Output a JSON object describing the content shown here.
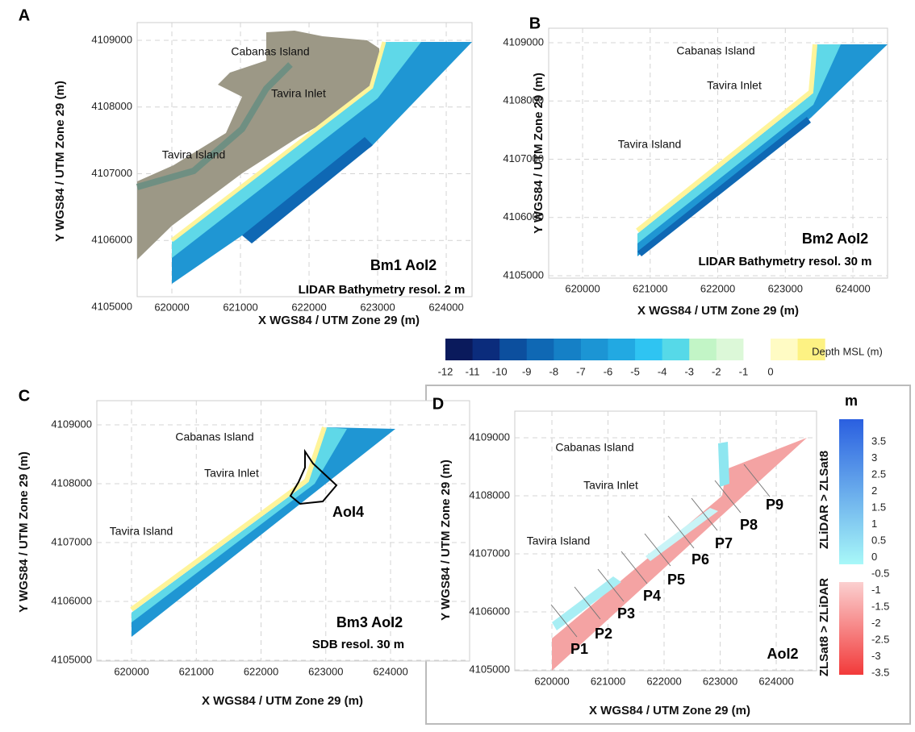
{
  "panels": [
    {
      "letter": "A",
      "title": "Bm1 AoI2",
      "subtitle": "LIDAR Bathymetry resol. 2 m",
      "xlabel": "X WGS84 / UTM Zone 29 (m)",
      "ylabel": "Y WGS84 / UTM Zone 29 (m)",
      "xlim": [
        619494,
        624376
      ],
      "ylim": [
        4105157,
        4109266
      ],
      "xticks": [
        620000,
        621000,
        622000,
        623000,
        624000
      ],
      "yticks": [
        4105000,
        4106000,
        4107000,
        4108000,
        4109000
      ],
      "annotations": [
        "Cabanas Island",
        "Tavira Inlet",
        "Tavira Island"
      ]
    },
    {
      "letter": "B",
      "title": "Bm2 AoI2",
      "subtitle": "LIDAR Bathymetry resol. 30 m",
      "xlabel": "X WGS84 / UTM Zone 29 (m)",
      "ylabel": "Y WGS84 / UTM Zone 29 (m)",
      "xlim": [
        619498,
        624513
      ],
      "ylim": [
        4104958,
        4109249
      ],
      "xticks": [
        620000,
        621000,
        622000,
        623000,
        624000
      ],
      "yticks": [
        4105000,
        4106000,
        4107000,
        4108000,
        4109000
      ],
      "annotations": [
        "Cabanas Island",
        "Tavira Inlet",
        "Tavira Island"
      ]
    },
    {
      "letter": "C",
      "title": "Bm3 AoI2",
      "subtitle": "SDB resol. 30 m",
      "xlabel": "X WGS84 / UTM Zone 29 (m)",
      "ylabel": "Y WGS84 / UTM Zone 29 (m)",
      "xlim": [
        619464,
        625221
      ],
      "ylim": [
        4104986,
        4109411
      ],
      "xticks": [
        620000,
        621000,
        622000,
        623000,
        624000
      ],
      "yticks": [
        4105000,
        4106000,
        4107000,
        4108000,
        4109000
      ],
      "annotations": [
        "Cabanas Island",
        "Tavira Inlet",
        "Tavira Island",
        "AoI4"
      ]
    },
    {
      "letter": "D",
      "title": "AoI2",
      "xlabel": "X WGS84 / UTM Zone 29 (m)",
      "ylabel": "Y WGS84 / UTM Zone 29 (m)",
      "xlim": [
        619338,
        624719
      ],
      "ylim": [
        4104986,
        4109458
      ],
      "xticks": [
        620000,
        621000,
        622000,
        623000,
        624000
      ],
      "yticks": [
        4105000,
        4106000,
        4107000,
        4108000,
        4109000
      ],
      "annotations": [
        "Cabanas Island",
        "Tavira Inlet",
        "Tavira Island"
      ],
      "profiles": [
        "P1",
        "P2",
        "P3",
        "P4",
        "P5",
        "P6",
        "P7",
        "P8",
        "P9"
      ]
    }
  ],
  "depth_colorbar": {
    "title": "Depth MSL (m)",
    "ticks": [
      -12,
      -11,
      -10,
      -9,
      -8,
      -7,
      -6,
      -5,
      -4,
      -3,
      -2,
      -1,
      0
    ],
    "colors": [
      "#0a1a5c",
      "#0b2c7c",
      "#0c4f9e",
      "#0f68b4",
      "#1580c6",
      "#1c95d4",
      "#22a9e2",
      "#2fc4f2",
      "#56d9e8",
      "#c2f5c6",
      "#dcf8d8",
      "#ffffff",
      "#fffbc4",
      "#fdf283"
    ]
  },
  "difference_colorbar": {
    "unit": "m",
    "upper_label": "ZLiDAR > ZLSat8",
    "lower_label": "ZLSat8 > ZLiDAR",
    "ticks": [
      3.5,
      3,
      2.5,
      2,
      1.5,
      1,
      0.5,
      0,
      -0.5,
      -1,
      -1.5,
      -2,
      -2.5,
      -3,
      -3.5
    ]
  }
}
